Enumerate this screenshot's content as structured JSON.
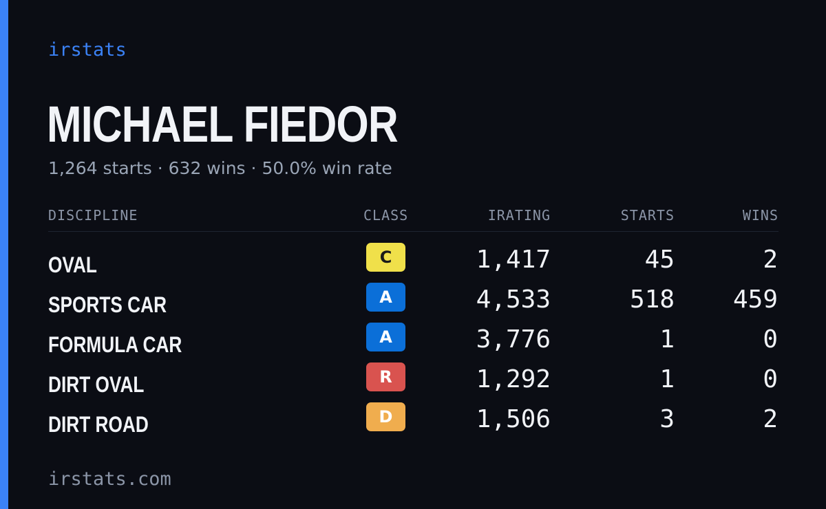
{
  "brand": "irstats",
  "driver": {
    "name": "MICHAEL FIEDOR",
    "starts_text": "1,264 starts",
    "wins_text": "632 wins",
    "win_rate_text": "50.0% win rate",
    "separator": "·"
  },
  "table": {
    "headers": {
      "discipline": "DISCIPLINE",
      "class": "CLASS",
      "irating": "IRATING",
      "starts": "STARTS",
      "wins": "WINS"
    },
    "rows": [
      {
        "discipline": "OVAL",
        "class": "C",
        "class_bg": "#f0e04a",
        "class_fg": "#1a1a1a",
        "irating": "1,417",
        "starts": "45",
        "wins": "2"
      },
      {
        "discipline": "SPORTS CAR",
        "class": "A",
        "class_bg": "#0b6fd8",
        "class_fg": "#ffffff",
        "irating": "4,533",
        "starts": "518",
        "wins": "459"
      },
      {
        "discipline": "FORMULA CAR",
        "class": "A",
        "class_bg": "#0b6fd8",
        "class_fg": "#ffffff",
        "irating": "3,776",
        "starts": "1",
        "wins": "0"
      },
      {
        "discipline": "DIRT OVAL",
        "class": "R",
        "class_bg": "#d9534f",
        "class_fg": "#ffffff",
        "irating": "1,292",
        "starts": "1",
        "wins": "0"
      },
      {
        "discipline": "DIRT ROAD",
        "class": "D",
        "class_bg": "#f0ad4e",
        "class_fg": "#ffffff",
        "irating": "1,506",
        "starts": "3",
        "wins": "2"
      }
    ]
  },
  "footer": "irstats.com",
  "colors": {
    "background": "#0b0d14",
    "accent": "#3b82f6",
    "text": "#f1f3f7",
    "muted": "#9aa5b6"
  }
}
